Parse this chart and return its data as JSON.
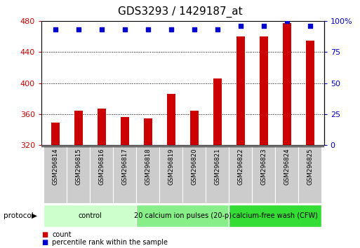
{
  "title": "GDS3293 / 1429187_at",
  "samples": [
    "GSM296814",
    "GSM296815",
    "GSM296816",
    "GSM296817",
    "GSM296818",
    "GSM296819",
    "GSM296820",
    "GSM296821",
    "GSM296822",
    "GSM296823",
    "GSM296824",
    "GSM296825"
  ],
  "counts": [
    349,
    364,
    367,
    356,
    354,
    386,
    364,
    406,
    460,
    460,
    477,
    455
  ],
  "percentile_ranks": [
    93,
    93,
    93,
    93,
    93,
    93,
    93,
    93,
    96,
    96,
    100,
    96
  ],
  "y_min": 320,
  "y_max": 480,
  "y_ticks": [
    320,
    360,
    400,
    440,
    480
  ],
  "right_y_ticks": [
    0,
    25,
    50,
    75,
    100
  ],
  "bar_color": "#cc0000",
  "dot_color": "#0000cc",
  "groups": [
    {
      "label": "control",
      "start": 0,
      "end": 3,
      "color": "#ccffcc"
    },
    {
      "label": "20 calcium ion pulses (20-p)",
      "start": 4,
      "end": 7,
      "color": "#88ee88"
    },
    {
      "label": "calcium-free wash (CFW)",
      "start": 8,
      "end": 11,
      "color": "#33dd33"
    }
  ],
  "protocol_label": "protocol",
  "legend_count_label": "count",
  "legend_pct_label": "percentile rank within the sample",
  "title_fontsize": 11,
  "tick_fontsize": 8,
  "bar_width": 0.35
}
